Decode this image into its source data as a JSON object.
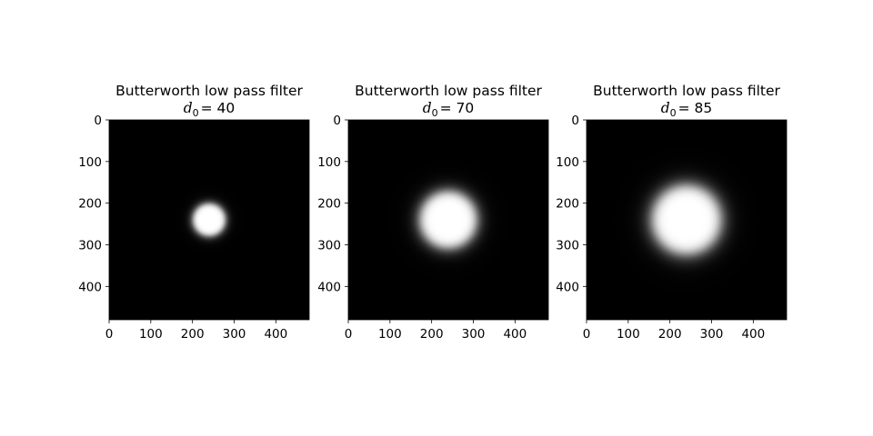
{
  "chart_data": [
    {
      "type": "heatmap",
      "title": "Butterworth low pass filter",
      "subtitle_symbol": "d",
      "subtitle_subscript": "0",
      "subtitle_value": "= 40",
      "d0": 40,
      "image_size": [
        480,
        480
      ],
      "center": [
        240,
        240
      ],
      "colormap": "gray",
      "xlim": [
        0,
        480
      ],
      "ylim": [
        480,
        0
      ],
      "xticks": [
        "0",
        "100",
        "200",
        "300",
        "400"
      ],
      "yticks": [
        "0",
        "100",
        "200",
        "300",
        "400"
      ]
    },
    {
      "type": "heatmap",
      "title": "Butterworth low pass filter",
      "subtitle_symbol": "d",
      "subtitle_subscript": "0",
      "subtitle_value": "= 70",
      "d0": 70,
      "image_size": [
        480,
        480
      ],
      "center": [
        240,
        240
      ],
      "colormap": "gray",
      "xlim": [
        0,
        480
      ],
      "ylim": [
        480,
        0
      ],
      "xticks": [
        "0",
        "100",
        "200",
        "300",
        "400"
      ],
      "yticks": [
        "0",
        "100",
        "200",
        "300",
        "400"
      ]
    },
    {
      "type": "heatmap",
      "title": "Butterworth low pass filter",
      "subtitle_symbol": "d",
      "subtitle_subscript": "0",
      "subtitle_value": "= 85",
      "d0": 85,
      "image_size": [
        480,
        480
      ],
      "center": [
        240,
        240
      ],
      "colormap": "gray",
      "xlim": [
        0,
        480
      ],
      "ylim": [
        480,
        0
      ],
      "xticks": [
        "0",
        "100",
        "200",
        "300",
        "400"
      ],
      "yticks": [
        "0",
        "100",
        "200",
        "300",
        "400"
      ]
    }
  ]
}
